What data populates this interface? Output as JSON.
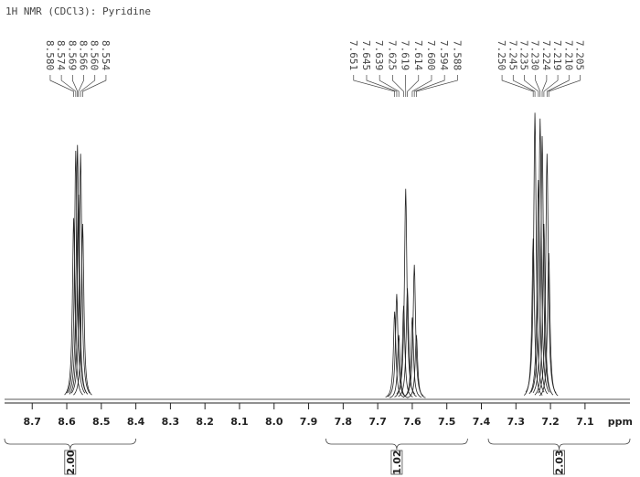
{
  "chart_data": {
    "type": "nmr",
    "title": "1H NMR (CDCl3): Pyridine",
    "x_label": "ppm",
    "xlim": [
      8.78,
      6.97
    ],
    "ylim": [
      0,
      100
    ],
    "xticks": [
      8.7,
      8.6,
      8.5,
      8.4,
      8.3,
      8.2,
      8.1,
      {
        "value": 8,
        "label": "8.0"
      },
      7.9,
      7.8,
      7.7,
      7.6,
      7.5,
      7.4,
      7.3,
      7.2,
      7.1
    ],
    "color": "#222222",
    "series": [
      {
        "name": "Pyridine",
        "x": [
          {
            "value": 8.58,
            "label": "8.580"
          },
          {
            "value": 8.574,
            "label": "8.574"
          },
          {
            "value": 8.569,
            "label": "8.569"
          },
          {
            "value": 8.566,
            "label": "8.566"
          },
          {
            "value": 8.56,
            "label": "8.560"
          },
          {
            "value": 8.554,
            "label": "8.554"
          },
          {
            "value": 7.651,
            "label": "7.651"
          },
          {
            "value": 7.645,
            "label": "7.645"
          },
          {
            "value": 7.639,
            "label": "7.639"
          },
          {
            "value": 7.625,
            "label": "7.625"
          },
          {
            "value": 7.619,
            "label": "7.619"
          },
          {
            "value": 7.614,
            "label": "7.614"
          },
          {
            "value": 7.6,
            "label": "7.600"
          },
          {
            "value": 7.594,
            "label": "7.594"
          },
          {
            "value": 7.588,
            "label": "7.588"
          },
          {
            "value": 7.25,
            "label": "7.250"
          },
          {
            "value": 7.245,
            "label": "7.245"
          },
          {
            "value": 7.235,
            "label": "7.235"
          },
          {
            "value": 7.23,
            "label": "7.230"
          },
          {
            "value": 7.224,
            "label": "7.224"
          },
          {
            "value": 7.219,
            "label": "7.219"
          },
          {
            "value": 7.21,
            "label": "7.210"
          },
          {
            "value": 7.205,
            "label": "7.205"
          }
        ],
        "values": [
          62,
          85,
          87,
          70,
          84,
          60,
          30,
          36,
          22,
          32,
          72,
          38,
          28,
          46,
          22,
          55,
          98,
          75,
          96,
          90,
          60,
          84,
          50
        ]
      }
    ],
    "integrals": {
      "from": [
        8.78,
        7.85,
        7.38
      ],
      "to": [
        8.4,
        7.44,
        6.97
      ],
      "values": [
        2,
        1.02,
        2.03
      ],
      "value_labels": [
        "2.00",
        "1.02",
        "2.03"
      ]
    }
  }
}
